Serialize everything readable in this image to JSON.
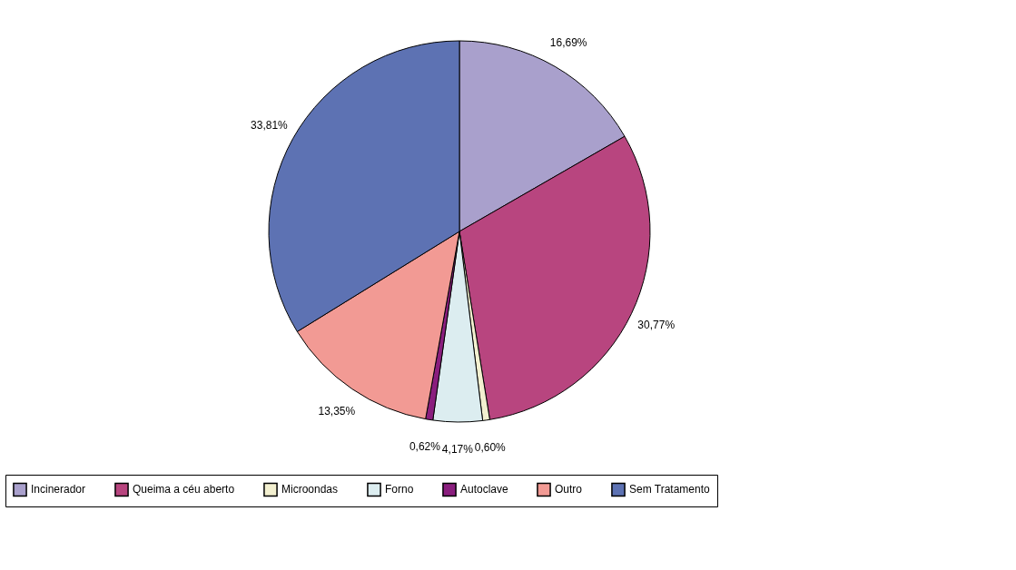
{
  "chart_data": {
    "type": "pie",
    "categories": [
      "Incinerador",
      "Queima a céu aberto",
      "Microondas",
      "Forno",
      "Autoclave",
      "Outro",
      "Sem Tratamento"
    ],
    "values": [
      16.69,
      30.77,
      0.6,
      4.17,
      0.62,
      13.35,
      33.81
    ],
    "value_labels": [
      "16,69%",
      "30,77%",
      "0,60%",
      "4,17%",
      "0,62%",
      "13,35%",
      "33,81%"
    ],
    "colors": [
      "#a9a0cc",
      "#b8457f",
      "#f3f0d0",
      "#dcedf0",
      "#8a1e7e",
      "#f29a94",
      "#5d72b3"
    ],
    "legend": "bottom"
  }
}
